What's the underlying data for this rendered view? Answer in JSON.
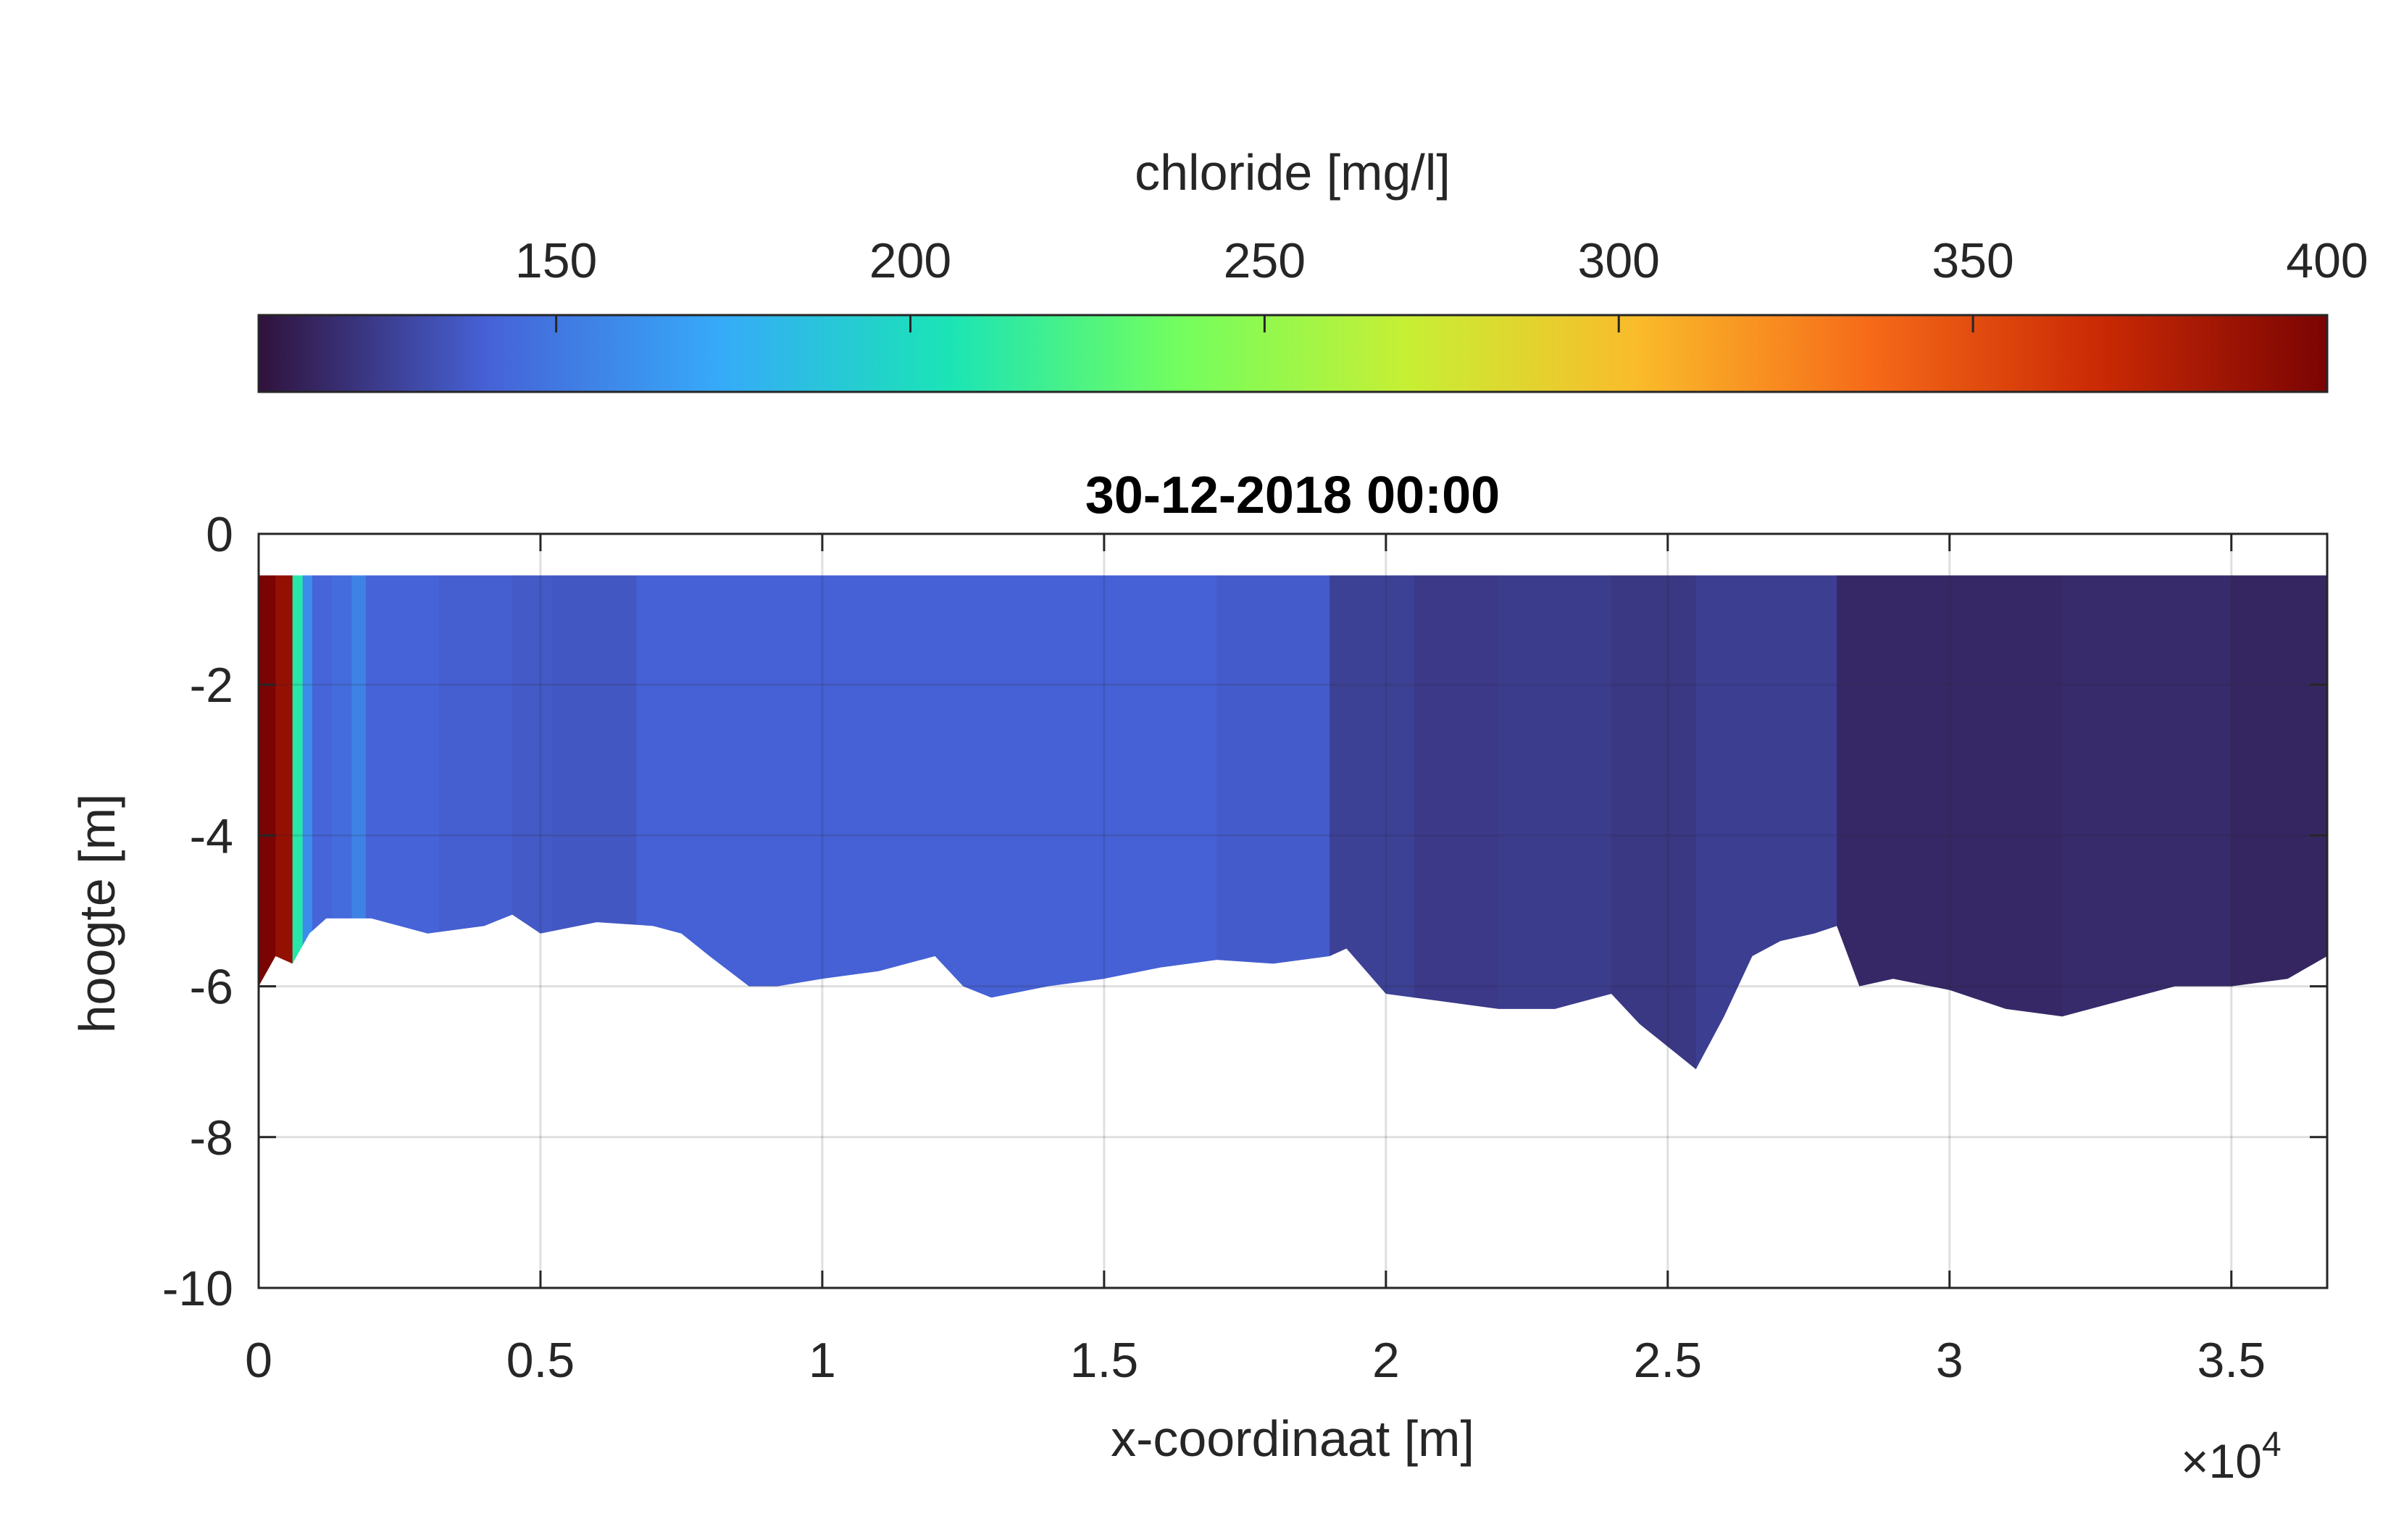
{
  "chart_data": {
    "type": "heatmap",
    "title": "30-12-2018 00:00",
    "xlabel": "x-coordinaat [m]",
    "ylabel": "hoogte [m]",
    "x_exponent_label": "×10",
    "x_exponent_power": "4",
    "xlim": [
      0,
      36700
    ],
    "ylim": [
      -10,
      0
    ],
    "xticks": [
      0,
      5000,
      10000,
      15000,
      20000,
      25000,
      30000,
      35000
    ],
    "xtick_labels": [
      "0",
      "0.5",
      "1",
      "1.5",
      "2",
      "2.5",
      "3",
      "3.5"
    ],
    "yticks": [
      0,
      -2,
      -4,
      -6,
      -8,
      -10
    ],
    "ytick_labels": [
      "0",
      "-2",
      "-4",
      "-6",
      "-8",
      "-10"
    ],
    "grid": true,
    "surface_level": -0.55,
    "colorbar": {
      "label": "chloride [mg/l]",
      "location": "top",
      "range": [
        108,
        400
      ],
      "ticks": [
        150,
        200,
        250,
        300,
        350,
        400
      ],
      "tick_labels": [
        "150",
        "200",
        "250",
        "300",
        "350",
        "400"
      ],
      "colormap": "turbo",
      "colors": [
        "#30123b",
        "#4662d7",
        "#36aaf9",
        "#1ae4b6",
        "#72fe5e",
        "#c7ef34",
        "#fabb2a",
        "#f66b19",
        "#cb2a04",
        "#7a0403"
      ]
    },
    "bottom_profile": {
      "x": [
        0,
        300,
        600,
        900,
        1200,
        2000,
        3000,
        4000,
        4500,
        5000,
        6000,
        7000,
        7500,
        8000,
        8700,
        9200,
        10000,
        11000,
        12000,
        12500,
        13000,
        14000,
        15000,
        16000,
        17000,
        18000,
        19000,
        19300,
        20000,
        21000,
        22000,
        23000,
        24000,
        24500,
        25000,
        25500,
        26000,
        26500,
        27000,
        27600,
        28000,
        28400,
        29000,
        30000,
        31000,
        32000,
        33000,
        34000,
        35000,
        36000,
        36700
      ],
      "y": [
        -6.0,
        -5.6,
        -5.7,
        -5.3,
        -5.1,
        -5.1,
        -5.3,
        -5.2,
        -5.05,
        -5.3,
        -5.15,
        -5.2,
        -5.3,
        -5.6,
        -6.0,
        -6.0,
        -5.9,
        -5.8,
        -5.6,
        -6.0,
        -6.15,
        -6.0,
        -5.9,
        -5.75,
        -5.65,
        -5.7,
        -5.6,
        -5.5,
        -6.1,
        -6.2,
        -6.3,
        -6.3,
        -6.1,
        -6.5,
        -6.8,
        -7.1,
        -6.4,
        -5.6,
        -5.4,
        -5.3,
        -5.2,
        -6.0,
        -5.9,
        -6.05,
        -6.3,
        -6.4,
        -6.2,
        -6.0,
        -6.0,
        -5.9,
        -5.6
      ]
    },
    "segments": [
      {
        "x0": 0,
        "x1": 300,
        "value": 400
      },
      {
        "x0": 300,
        "x1": 600,
        "value": 390
      },
      {
        "x0": 600,
        "x1": 780,
        "value": 210
      },
      {
        "x0": 780,
        "x1": 950,
        "value": 160
      },
      {
        "x0": 950,
        "x1": 1300,
        "value": 142
      },
      {
        "x0": 1300,
        "x1": 1650,
        "value": 145
      },
      {
        "x0": 1650,
        "x1": 1900,
        "value": 155
      },
      {
        "x0": 1900,
        "x1": 3200,
        "value": 141
      },
      {
        "x0": 3200,
        "x1": 4500,
        "value": 139
      },
      {
        "x0": 4500,
        "x1": 5200,
        "value": 137
      },
      {
        "x0": 5200,
        "x1": 6700,
        "value": 136
      },
      {
        "x0": 6700,
        "x1": 17000,
        "value": 140
      },
      {
        "x0": 17000,
        "x1": 19000,
        "value": 138
      },
      {
        "x0": 19000,
        "x1": 20500,
        "value": 127
      },
      {
        "x0": 20500,
        "x1": 22000,
        "value": 124
      },
      {
        "x0": 22000,
        "x1": 24000,
        "value": 125
      },
      {
        "x0": 24000,
        "x1": 25500,
        "value": 123
      },
      {
        "x0": 25500,
        "x1": 28000,
        "value": 126
      },
      {
        "x0": 28000,
        "x1": 32000,
        "value": 117
      },
      {
        "x0": 32000,
        "x1": 35000,
        "value": 118
      },
      {
        "x0": 35000,
        "x1": 36700,
        "value": 116
      }
    ]
  }
}
